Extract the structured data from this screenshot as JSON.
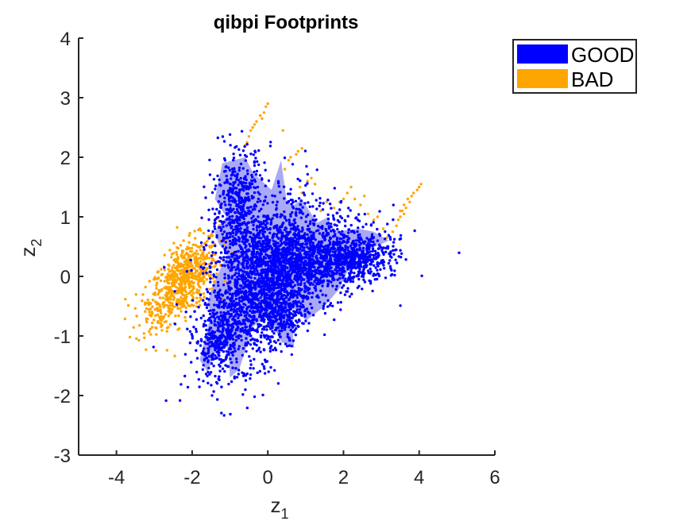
{
  "chart_data": {
    "type": "scatter",
    "title": "qibpi Footprints",
    "xlabel": {
      "base": "z",
      "sub": "1"
    },
    "ylabel": {
      "base": "z",
      "sub": "2"
    },
    "xlim": [
      -5,
      6
    ],
    "ylim": [
      -3,
      4
    ],
    "xticks": [
      -4,
      -2,
      0,
      2,
      4,
      6
    ],
    "yticks": [
      -3,
      -2,
      -1,
      0,
      1,
      2,
      3,
      4
    ],
    "grid": false,
    "legend_position": "outside-top-right",
    "series": [
      {
        "name": "GOOD",
        "color": "#0000ff",
        "footprint_color": "#a9a9f5",
        "footprint": [
          [
            -1.2,
            1.9
          ],
          [
            -0.6,
            2.0
          ],
          [
            -0.4,
            1.75
          ],
          [
            0.1,
            1.45
          ],
          [
            0.35,
            1.95
          ],
          [
            0.5,
            1.25
          ],
          [
            0.7,
            1.2
          ],
          [
            0.9,
            1.3
          ],
          [
            1.3,
            0.9
          ],
          [
            1.6,
            1.0
          ],
          [
            1.7,
            0.75
          ],
          [
            2.4,
            0.8
          ],
          [
            2.8,
            0.75
          ],
          [
            3.2,
            0.6
          ],
          [
            2.3,
            0.35
          ],
          [
            1.9,
            -0.2
          ],
          [
            1.5,
            -0.5
          ],
          [
            1.0,
            -0.75
          ],
          [
            0.8,
            -0.55
          ],
          [
            0.6,
            -0.55
          ],
          [
            0.7,
            -1.2
          ],
          [
            0.35,
            -1.1
          ],
          [
            0.0,
            -0.65
          ],
          [
            -0.4,
            -0.85
          ],
          [
            -0.75,
            -1.55
          ],
          [
            -1.0,
            -1.7
          ],
          [
            -1.05,
            -1.2
          ],
          [
            -1.3,
            -1.15
          ],
          [
            -1.6,
            -1.6
          ],
          [
            -1.8,
            -1.4
          ],
          [
            -1.6,
            -0.9
          ],
          [
            -1.5,
            -0.6
          ],
          [
            -1.6,
            -0.45
          ],
          [
            -1.45,
            -0.15
          ],
          [
            -1.2,
            0.2
          ],
          [
            -1.05,
            0.35
          ],
          [
            -1.3,
            0.55
          ],
          [
            -1.4,
            0.75
          ],
          [
            -1.1,
            1.0
          ],
          [
            -1.4,
            1.3
          ]
        ],
        "clusters": [
          {
            "cx": -0.2,
            "cy": -0.1,
            "sx": 0.75,
            "sy": 0.7,
            "rho": 0.45,
            "n": 1900
          },
          {
            "cx": 1.2,
            "cy": 0.25,
            "sx": 0.9,
            "sy": 0.35,
            "rho": 0.3,
            "n": 1100
          },
          {
            "cx": 2.4,
            "cy": 0.3,
            "sx": 0.45,
            "sy": 0.18,
            "rho": 0.2,
            "n": 350
          },
          {
            "cx": -0.8,
            "cy": 1.2,
            "sx": 0.35,
            "sy": 0.45,
            "rho": 0.2,
            "n": 450
          },
          {
            "cx": -1.3,
            "cy": -1.1,
            "sx": 0.25,
            "sy": 0.25,
            "rho": 0.3,
            "n": 220
          },
          {
            "cx": 0.4,
            "cy": -0.7,
            "sx": 0.3,
            "sy": 0.25,
            "rho": 0.2,
            "n": 200
          }
        ]
      },
      {
        "name": "BAD",
        "color": "#ffa500",
        "footprint_color": "#ffa500",
        "clusters": [
          {
            "cx": -2.2,
            "cy": -0.05,
            "sx": 0.45,
            "sy": 0.35,
            "rho": 0.55,
            "n": 650
          },
          {
            "cx": -2.9,
            "cy": -0.55,
            "sx": 0.3,
            "sy": 0.25,
            "rho": 0.3,
            "n": 70
          }
        ],
        "points": [
          [
            -0.6,
            2.2
          ],
          [
            -0.55,
            2.25
          ],
          [
            -0.5,
            2.35
          ],
          [
            -0.45,
            2.45
          ],
          [
            -0.4,
            2.5
          ],
          [
            -0.35,
            2.55
          ],
          [
            -0.3,
            2.6
          ],
          [
            -0.2,
            2.7
          ],
          [
            -0.1,
            2.75
          ],
          [
            -0.15,
            2.65
          ],
          [
            -0.05,
            2.85
          ],
          [
            0.0,
            2.9
          ],
          [
            0.4,
            2.45
          ],
          [
            0.55,
            1.95
          ],
          [
            0.6,
            2.0
          ],
          [
            0.75,
            2.05
          ],
          [
            0.8,
            2.1
          ],
          [
            0.9,
            2.15
          ],
          [
            0.45,
            1.8
          ],
          [
            0.85,
            1.5
          ],
          [
            0.9,
            1.4
          ],
          [
            1.05,
            1.6
          ],
          [
            1.15,
            1.65
          ],
          [
            1.25,
            1.55
          ],
          [
            1.4,
            1.1
          ],
          [
            1.55,
            1.25
          ],
          [
            1.75,
            1.15
          ],
          [
            1.9,
            1.25
          ],
          [
            2.0,
            1.3
          ],
          [
            2.1,
            1.4
          ],
          [
            2.2,
            1.5
          ],
          [
            2.3,
            1.3
          ],
          [
            2.45,
            1.2
          ],
          [
            2.55,
            1.35
          ],
          [
            2.65,
            1.05
          ],
          [
            2.8,
            0.95
          ],
          [
            2.9,
            1.0
          ],
          [
            3.05,
            0.8
          ],
          [
            3.15,
            0.65
          ],
          [
            3.3,
            0.75
          ],
          [
            3.4,
            0.85
          ],
          [
            3.5,
            1.0
          ],
          [
            3.55,
            1.1
          ],
          [
            3.6,
            1.2
          ],
          [
            3.65,
            1.15
          ],
          [
            3.7,
            1.3
          ],
          [
            3.75,
            1.25
          ],
          [
            3.8,
            1.35
          ],
          [
            3.85,
            1.4
          ],
          [
            3.95,
            1.45
          ],
          [
            4.0,
            1.5
          ],
          [
            4.05,
            1.55
          ],
          [
            3.6,
            1.05
          ],
          [
            3.5,
            1.1
          ],
          [
            3.45,
            0.95
          ]
        ]
      }
    ]
  }
}
